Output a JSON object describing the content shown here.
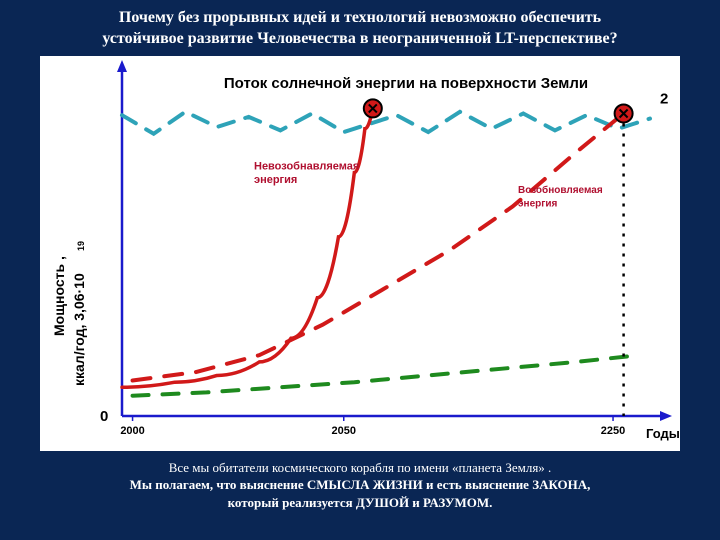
{
  "title_line1": "Почему без прорывных идей и технологий невозможно обеспечить",
  "title_line2": "устойчивое развитие Человечества в неограниченной LT-перспективе?",
  "footer_line1": "Все мы обитатели космического корабля по имени «планета Земля» .",
  "footer_line2": "Мы полагаем, что выяснение СМЫСЛА ЖИЗНИ и есть выяснение ЗАКОНА,",
  "footer_line3": "который реализуется ДУШОЙ и РАЗУМОМ.",
  "chart": {
    "type": "line",
    "xlabel": "Годы",
    "ylabel_line1": "Мощность ,",
    "ylabel_line2": "ккал/год, 3,06·10",
    "ylabel_exp": "19",
    "ylim": [
      0,
      2
    ],
    "ytick_labels": [
      "0",
      "2"
    ],
    "xtick_labels": [
      "2000",
      "2050",
      "2250"
    ],
    "xtick_positions": [
      0.02,
      0.42,
      0.93
    ],
    "title_text": "Поток солнечной энергии на поверхности Земли",
    "label_nonrenew": "Невозобнавляемая энергия",
    "label_renew": "Возобновляемая энергия",
    "background_color": "#ffffff",
    "axis_color": "#1a1acc",
    "solar_color": "#2ea3b8",
    "red_color": "#d11919",
    "green_color": "#1e8a1e",
    "text_color": "#000000",
    "red_label_color": "#b01030",
    "axis_width": 2.5,
    "curve_width": 3.5,
    "dash_width": 4,
    "solar_line": [
      [
        0.0,
        0.89
      ],
      [
        0.06,
        0.835
      ],
      [
        0.12,
        0.9
      ],
      [
        0.18,
        0.855
      ],
      [
        0.24,
        0.885
      ],
      [
        0.3,
        0.845
      ],
      [
        0.36,
        0.895
      ],
      [
        0.42,
        0.84
      ],
      [
        0.52,
        0.89
      ],
      [
        0.58,
        0.84
      ],
      [
        0.64,
        0.9
      ],
      [
        0.7,
        0.85
      ],
      [
        0.76,
        0.895
      ],
      [
        0.82,
        0.845
      ],
      [
        0.88,
        0.89
      ],
      [
        0.94,
        0.85
      ],
      [
        1.0,
        0.88
      ]
    ],
    "red_curve": [
      [
        0.0,
        0.085
      ],
      [
        0.1,
        0.1
      ],
      [
        0.18,
        0.12
      ],
      [
        0.26,
        0.16
      ],
      [
        0.32,
        0.23
      ],
      [
        0.37,
        0.35
      ],
      [
        0.41,
        0.53
      ],
      [
        0.44,
        0.72
      ],
      [
        0.46,
        0.85
      ],
      [
        0.475,
        0.91
      ]
    ],
    "red_dash": [
      [
        0.02,
        0.105
      ],
      [
        0.14,
        0.13
      ],
      [
        0.26,
        0.18
      ],
      [
        0.38,
        0.27
      ],
      [
        0.5,
        0.38
      ],
      [
        0.62,
        0.49
      ],
      [
        0.74,
        0.62
      ],
      [
        0.86,
        0.78
      ],
      [
        0.95,
        0.895
      ]
    ],
    "green_dash": [
      [
        0.02,
        0.06
      ],
      [
        0.16,
        0.07
      ],
      [
        0.3,
        0.085
      ],
      [
        0.44,
        0.1
      ],
      [
        0.58,
        0.12
      ],
      [
        0.72,
        0.14
      ],
      [
        0.86,
        0.16
      ],
      [
        0.98,
        0.18
      ]
    ],
    "markers": [
      {
        "x": 0.475,
        "y": 0.91
      },
      {
        "x": 0.95,
        "y": 0.895
      }
    ],
    "vline_x": 0.95
  }
}
